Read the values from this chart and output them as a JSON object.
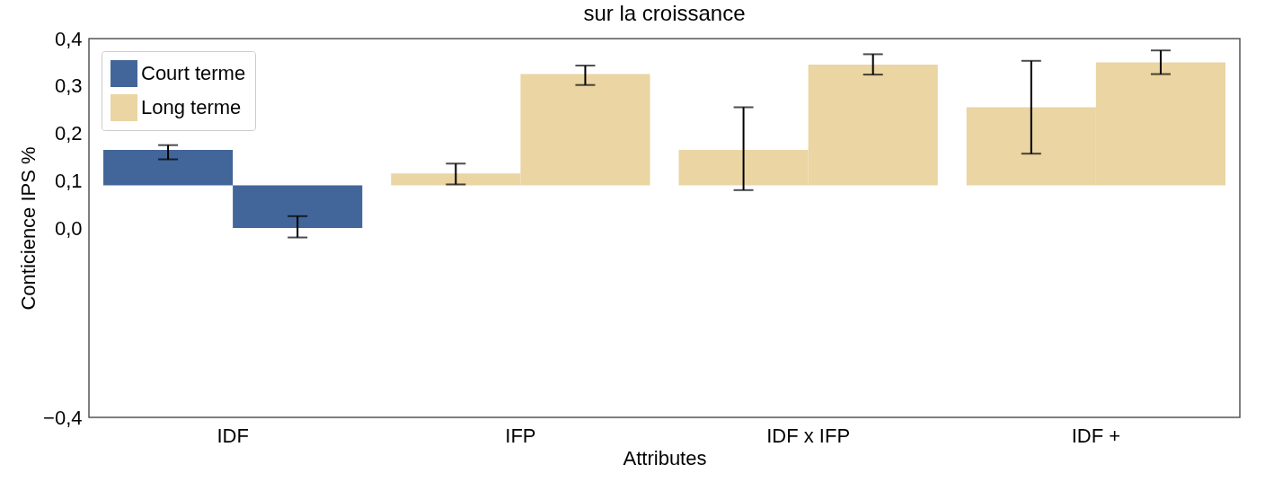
{
  "chart_data": {
    "type": "bar",
    "title": "sur la croissance",
    "xlabel": "Attributes",
    "ylabel": "Conticience IPS %",
    "categories": [
      "IDF",
      "IFP",
      "IDF x IFP",
      "IDF +"
    ],
    "series": [
      {
        "name": "Court terme",
        "color": "#426699",
        "values": [
          0.075,
          null,
          null,
          null
        ],
        "base": [
          0.09,
          null,
          null,
          null
        ],
        "errors": [
          [
            0.145,
            0.175
          ],
          null,
          null,
          null
        ]
      },
      {
        "color": "#426699",
        "values": [
          -0.09,
          null,
          null,
          null
        ],
        "base": [
          0.09,
          null,
          null,
          null
        ],
        "errors": [
          [
            -0.02,
            0.025
          ],
          null,
          null,
          null
        ]
      },
      {
        "name": "Long terme",
        "color": "#ead5a3",
        "values": [
          null,
          0.025,
          0.075,
          0.165
        ],
        "base": [
          null,
          0.09,
          0.09,
          0.09
        ],
        "errors": [
          null,
          [
            0.092,
            0.136
          ],
          [
            0.08,
            0.255
          ],
          [
            0.157,
            0.353
          ]
        ]
      },
      {
        "color": "#ead5a3",
        "values": [
          null,
          0.235,
          0.255,
          0.26
        ],
        "base": [
          null,
          0.09,
          0.09,
          0.09
        ],
        "errors": [
          null,
          [
            0.302,
            0.343
          ],
          [
            0.324,
            0.367
          ],
          [
            0.325,
            0.375
          ]
        ]
      }
    ],
    "ylim": [
      -0.4,
      0.4
    ],
    "yticks": [
      {
        "value": -0.4,
        "label": "−0,4"
      },
      {
        "value": 0,
        "label": "0,0"
      },
      {
        "value": 0.1,
        "label": "0,1"
      },
      {
        "value": 0.2,
        "label": "0,2"
      },
      {
        "value": 0.3,
        "label": "0,3"
      },
      {
        "value": 0.4,
        "label": "0,4"
      }
    ],
    "grid": false,
    "legend": "top left"
  }
}
